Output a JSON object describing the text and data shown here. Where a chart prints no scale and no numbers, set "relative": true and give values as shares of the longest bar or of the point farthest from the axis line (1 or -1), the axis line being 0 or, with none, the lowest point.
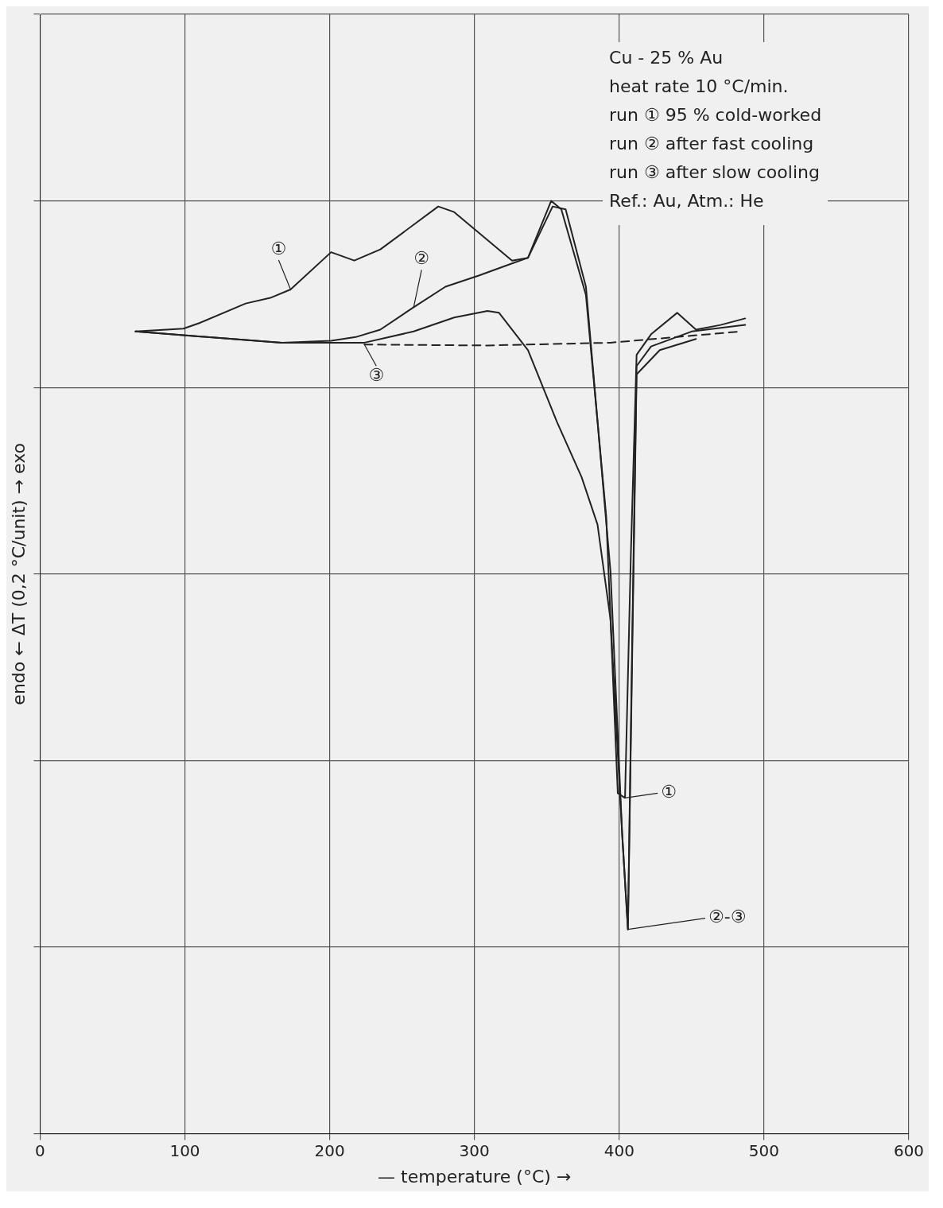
{
  "chart_data": {
    "type": "line",
    "relative": true,
    "xlabel": "— temperature (°C) →",
    "ylabel": "endo ← ΔT (0,2 °C/unit) → exo",
    "xlim": [
      0,
      600
    ],
    "xticks": [
      0,
      100,
      200,
      300,
      400,
      500,
      600
    ],
    "grid": true,
    "legend": false,
    "marker": "none",
    "annotations": [
      "Cu - 25 % Au",
      "heat rate 10 °C/min.",
      "run ① 95 % cold-worked",
      "run ② after fast cooling",
      "run ③ after slow cooling",
      "Ref.: Au, Atm.: He",
      {
        "text": "①",
        "x": 173,
        "y": 0.905
      },
      {
        "text": "②",
        "x": 258,
        "y": 0.886
      },
      {
        "text": "③",
        "x": 224,
        "y": 0.846
      },
      {
        "text": "①",
        "x": 404,
        "y": 0.36
      },
      {
        "text": "②-③",
        "x": 406,
        "y": 0.219
      }
    ],
    "series": [
      {
        "color": "#222222",
        "line_style": "solid",
        "x": [
          66,
          99,
          110,
          142,
          159,
          173,
          201,
          217,
          235,
          275,
          286,
          326,
          337,
          353,
          360,
          377,
          391,
          399,
          404,
          408,
          412,
          422,
          440,
          453,
          470,
          487
        ],
        "values": [
          0.86,
          0.863,
          0.869,
          0.89,
          0.896,
          0.905,
          0.945,
          0.936,
          0.948,
          0.994,
          0.988,
          0.936,
          0.939,
          1,
          0.991,
          0.899,
          0.662,
          0.365,
          0.36,
          0.619,
          0.835,
          0.857,
          0.88,
          0.862,
          0.867,
          0.874
        ]
      },
      {
        "color": "#222222",
        "line_style": "solid",
        "x": [
          66,
          99,
          167,
          201,
          218,
          235,
          258,
          280,
          303,
          326,
          337,
          354,
          363,
          377,
          394,
          402,
          406,
          409,
          412,
          422,
          450,
          487
        ],
        "values": [
          0.86,
          0.856,
          0.848,
          0.85,
          0.854,
          0.862,
          0.886,
          0.908,
          0.92,
          0.933,
          0.939,
          0.994,
          0.991,
          0.908,
          0.602,
          0.322,
          0.219,
          0.534,
          0.823,
          0.844,
          0.86,
          0.867
        ]
      },
      {
        "color": "#222222",
        "line_style": "solid",
        "x": [
          66,
          99,
          167,
          224,
          258,
          286,
          309,
          317,
          337,
          357,
          374,
          385,
          394,
          402,
          406,
          409,
          412,
          428,
          453
        ],
        "values": [
          0.86,
          0.856,
          0.848,
          0.848,
          0.86,
          0.875,
          0.882,
          0.88,
          0.84,
          0.763,
          0.704,
          0.653,
          0.551,
          0.322,
          0.219,
          0.517,
          0.814,
          0.84,
          0.852
        ]
      },
      {
        "color": "#222222",
        "line_style": "dashed",
        "x": [
          224,
          309,
          394,
          484
        ],
        "values": [
          0.846,
          0.845,
          0.848,
          0.86
        ]
      }
    ]
  }
}
